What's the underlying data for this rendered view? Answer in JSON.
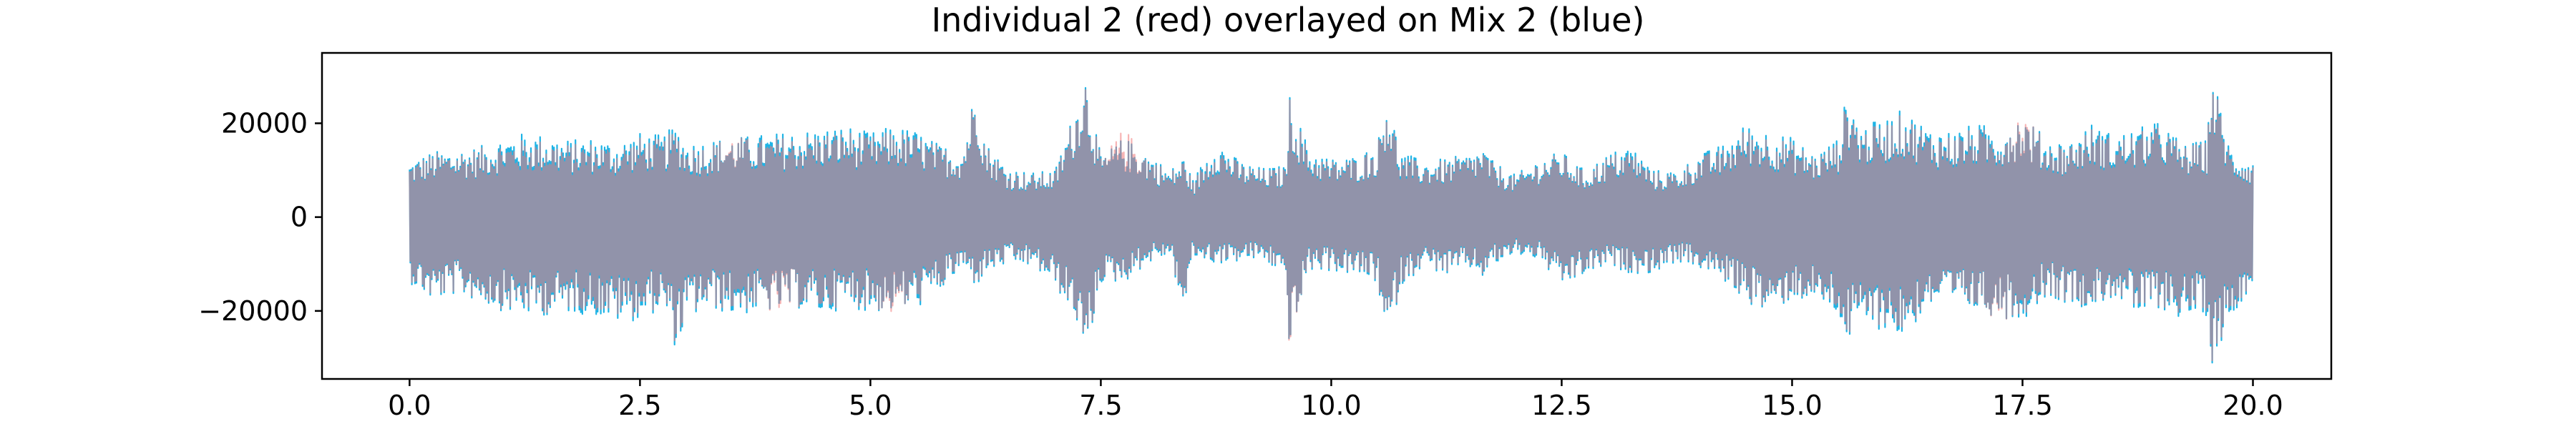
{
  "chart_data": {
    "type": "line",
    "title": "Individual 2 (red) overlayed on Mix 2 (blue)",
    "xlabel": "",
    "ylabel": "",
    "xlim": [
      -0.95,
      20.85
    ],
    "ylim": [
      -34500,
      35000
    ],
    "x_ticks": [
      0.0,
      2.5,
      5.0,
      7.5,
      10.0,
      12.5,
      15.0,
      17.5,
      20.0
    ],
    "x_tick_labels": [
      "0.0",
      "2.5",
      "5.0",
      "7.5",
      "10.0",
      "12.5",
      "15.0",
      "17.5",
      "20.0"
    ],
    "y_ticks": [
      -20000,
      0,
      20000
    ],
    "y_tick_labels": [
      "−20000",
      "0",
      "20000"
    ],
    "grid": false,
    "legend": "none",
    "colors": {
      "mix": "#1eb4e6",
      "individual": "#f07878",
      "overlap": "#8a7389",
      "axes": "#000000"
    },
    "series": [
      {
        "name": "Mix 2 (blue)",
        "x": [
          0.0,
          0.25,
          0.5,
          0.75,
          1.0,
          1.25,
          1.5,
          1.75,
          2.0,
          2.25,
          2.5,
          2.75,
          2.9,
          3.0,
          3.25,
          3.5,
          3.75,
          4.0,
          4.25,
          4.5,
          4.75,
          5.0,
          5.25,
          5.5,
          5.75,
          6.0,
          6.15,
          6.25,
          6.5,
          6.75,
          7.0,
          7.25,
          7.32,
          7.5,
          7.75,
          8.0,
          8.25,
          8.4,
          8.5,
          8.75,
          9.0,
          9.25,
          9.5,
          9.55,
          9.75,
          10.0,
          10.25,
          10.5,
          10.6,
          10.75,
          11.0,
          11.25,
          11.5,
          11.65,
          11.75,
          12.0,
          12.25,
          12.5,
          12.75,
          13.0,
          13.25,
          13.5,
          13.75,
          14.0,
          14.25,
          14.5,
          14.75,
          15.0,
          15.25,
          15.5,
          15.6,
          15.75,
          16.0,
          16.2,
          16.5,
          16.75,
          17.0,
          17.25,
          17.5,
          17.75,
          18.0,
          18.25,
          18.5,
          18.75,
          19.0,
          19.25,
          19.5,
          19.55,
          19.75,
          20.0
        ],
        "upper": [
          12000,
          14000,
          14500,
          15000,
          17000,
          18000,
          17500,
          16500,
          17000,
          16000,
          18000,
          17500,
          20000,
          16000,
          16500,
          17000,
          17500,
          18000,
          18500,
          19000,
          19500,
          18000,
          19500,
          18500,
          15500,
          14500,
          29000,
          16000,
          10500,
          9500,
          10000,
          25000,
          32500,
          13000,
          17000,
          14000,
          10000,
          13000,
          8000,
          17000,
          12000,
          10500,
          11000,
          26000,
          15000,
          12500,
          13000,
          15500,
          27000,
          14000,
          12000,
          12500,
          13500,
          15000,
          12000,
          9000,
          12500,
          14000,
          10000,
          13500,
          15500,
          10000,
          10000,
          13500,
          15500,
          20000,
          18500,
          17000,
          13500,
          17000,
          27000,
          19500,
          21000,
          23000,
          19000,
          18500,
          20000,
          19000,
          22000,
          17000,
          16000,
          20000,
          17500,
          19000,
          20500,
          15500,
          16500,
          32000,
          15000,
          12000
        ],
        "lower": [
          -14000,
          -18000,
          -16500,
          -18000,
          -20000,
          -21000,
          -21000,
          -20500,
          -21000,
          -22500,
          -22000,
          -19500,
          -29000,
          -22000,
          -19500,
          -21000,
          -20500,
          -20000,
          -19500,
          -21000,
          -19000,
          -20500,
          -20000,
          -19500,
          -16000,
          -11000,
          -15000,
          -12000,
          -10000,
          -10500,
          -14500,
          -23000,
          -33000,
          -14000,
          -14000,
          -10000,
          -8000,
          -21000,
          -8500,
          -10000,
          -9500,
          -9000,
          -13000,
          -29000,
          -11500,
          -11500,
          -12500,
          -14000,
          -28500,
          -15000,
          -10500,
          -12500,
          -11000,
          -13000,
          -10500,
          -8000,
          -9000,
          -15000,
          -12500,
          -10500,
          -12000,
          -12000,
          -9500,
          -11000,
          -13500,
          -18000,
          -21000,
          -17500,
          -18000,
          -21000,
          -27000,
          -23500,
          -24000,
          -26000,
          -19000,
          -19500,
          -20000,
          -21500,
          -22000,
          -17000,
          -18500,
          -19500,
          -17000,
          -21500,
          -19500,
          -22000,
          -21000,
          -32000,
          -22000,
          -14000
        ]
      },
      {
        "name": "Individual 2 (red)",
        "x": [
          0.0,
          0.25,
          0.5,
          0.75,
          1.0,
          1.25,
          1.5,
          1.75,
          2.0,
          2.25,
          2.5,
          2.75,
          2.9,
          3.0,
          3.25,
          3.5,
          3.75,
          4.0,
          4.25,
          4.5,
          4.75,
          5.0,
          5.25,
          5.5,
          5.75,
          6.0,
          6.15,
          6.25,
          6.5,
          6.75,
          7.0,
          7.25,
          7.32,
          7.5,
          7.75,
          8.0,
          8.25,
          8.4,
          8.5,
          8.75,
          9.0,
          9.25,
          9.5,
          9.55,
          9.75,
          10.0,
          10.25,
          10.5,
          10.6,
          10.75,
          11.0,
          11.25,
          11.5,
          11.65,
          11.75,
          12.0,
          12.25,
          12.5,
          12.75,
          13.0,
          13.25,
          13.5,
          13.75,
          14.0,
          14.25,
          14.5,
          14.75,
          15.0,
          15.25,
          15.5,
          15.6,
          15.75,
          16.0,
          16.2,
          16.5,
          16.75,
          17.0,
          17.25,
          17.5,
          17.75,
          18.0,
          18.25,
          18.5,
          18.75,
          19.0,
          19.25,
          19.5,
          19.55,
          19.75,
          20.0
        ],
        "upper": [
          11500,
          13500,
          14000,
          14500,
          16000,
          16500,
          16500,
          15500,
          16000,
          15000,
          17000,
          16500,
          19000,
          15000,
          15500,
          17500,
          16500,
          17000,
          17500,
          18000,
          18500,
          17000,
          18500,
          17500,
          15000,
          14000,
          28500,
          15500,
          10000,
          9000,
          9500,
          24500,
          32000,
          12500,
          19000,
          13500,
          9500,
          12500,
          7500,
          16000,
          11500,
          10000,
          10500,
          25500,
          14000,
          12000,
          12500,
          15000,
          26500,
          13000,
          11500,
          12000,
          13000,
          14500,
          11500,
          8500,
          12000,
          13500,
          9500,
          13000,
          14500,
          9500,
          9500,
          13000,
          14500,
          19000,
          17500,
          16000,
          13000,
          16000,
          26000,
          18500,
          20000,
          22000,
          18000,
          17500,
          19000,
          18000,
          23000,
          16000,
          15500,
          19000,
          16500,
          18000,
          19500,
          15000,
          16000,
          31500,
          14000,
          11500
        ],
        "lower": [
          -13500,
          -17500,
          -16000,
          -17500,
          -19500,
          -20000,
          -20500,
          -19500,
          -20000,
          -21500,
          -21000,
          -19000,
          -28000,
          -21000,
          -19000,
          -20000,
          -19500,
          -21000,
          -19000,
          -20000,
          -18500,
          -19500,
          -21000,
          -18500,
          -15500,
          -10500,
          -14500,
          -11500,
          -9500,
          -10000,
          -14000,
          -22500,
          -32500,
          -13500,
          -13500,
          -9500,
          -7500,
          -20500,
          -8000,
          -9500,
          -9000,
          -8500,
          -12500,
          -29500,
          -11000,
          -11000,
          -12000,
          -13500,
          -28000,
          -14500,
          -10000,
          -12000,
          -10500,
          -12500,
          -10000,
          -7500,
          -8500,
          -14500,
          -12000,
          -10000,
          -11500,
          -11500,
          -9000,
          -10500,
          -13000,
          -17500,
          -20500,
          -17000,
          -17500,
          -20000,
          -26500,
          -22500,
          -23000,
          -25000,
          -18500,
          -19000,
          -19500,
          -22000,
          -21000,
          -16500,
          -18000,
          -19000,
          -16500,
          -20500,
          -19000,
          -21000,
          -20000,
          -31500,
          -21000,
          -13500
        ]
      }
    ]
  }
}
